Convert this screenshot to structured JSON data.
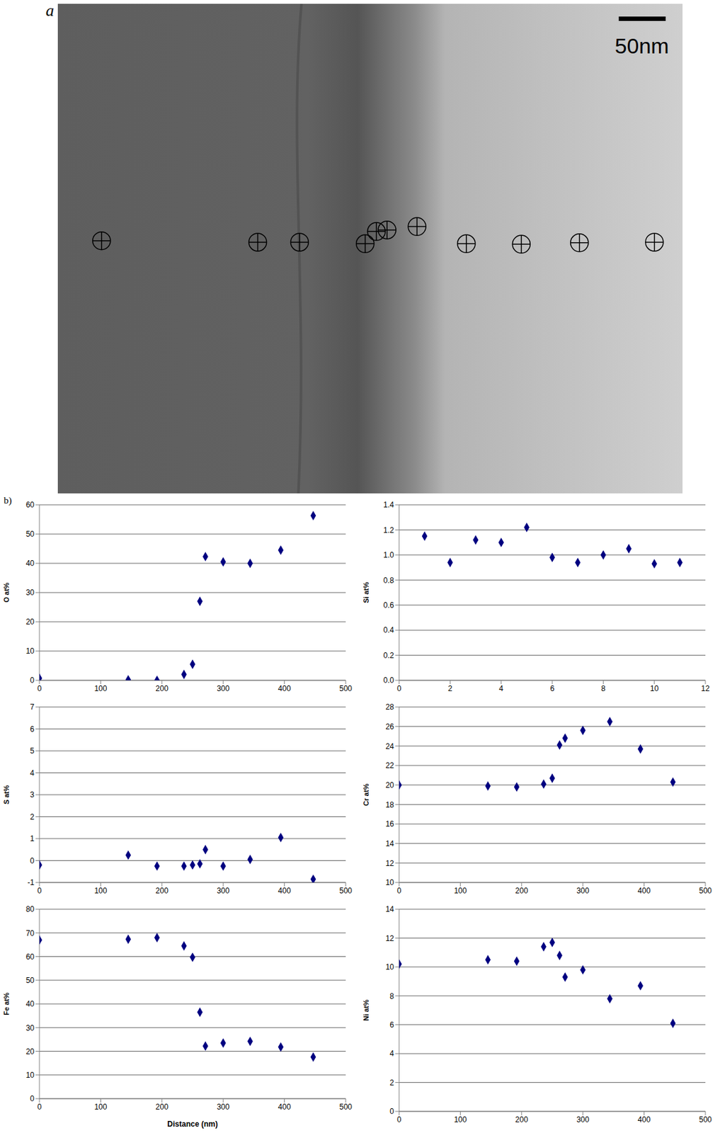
{
  "figure": {
    "panel_a_label": "a",
    "scale_bar_label": "50nm",
    "panel_b_label": "b)"
  },
  "chart_data": [
    {
      "type": "scatter",
      "y_label": "O at%",
      "color": "#000080",
      "marker": "diamond",
      "grid": true,
      "x": [
        0,
        145,
        192,
        236,
        250,
        262,
        271,
        300,
        344,
        394,
        447
      ],
      "values": [
        0.7,
        0.2,
        0,
        2,
        5.5,
        27,
        42.3,
        40.5,
        40,
        44.5,
        56.3
      ],
      "xlim": [
        0,
        500
      ],
      "xticks": [
        0,
        100,
        200,
        300,
        400,
        500
      ],
      "ylim": [
        0,
        60
      ],
      "yticks": [
        0,
        10,
        20,
        30,
        40,
        50,
        60
      ]
    },
    {
      "type": "scatter",
      "y_label": "Si at%",
      "color": "#000080",
      "marker": "diamond",
      "grid": true,
      "x": [
        1,
        2,
        3,
        4,
        5,
        6,
        7,
        8,
        9,
        10,
        11
      ],
      "values": [
        1.15,
        0.94,
        1.12,
        1.1,
        1.22,
        0.98,
        0.94,
        1.0,
        1.05,
        0.93,
        0.94
      ],
      "xlim": [
        0,
        12
      ],
      "xticks": [
        0,
        2,
        4,
        6,
        8,
        10,
        12
      ],
      "ylim": [
        0,
        1.4
      ],
      "yticks": [
        {
          "value": 0,
          "label": "0.0"
        },
        0.2,
        0.4,
        0.6,
        0.8,
        {
          "value": 1,
          "label": "1.0"
        },
        1.2,
        1.4
      ]
    },
    {
      "type": "scatter",
      "y_label": "S at%",
      "color": "#000080",
      "marker": "diamond",
      "grid": true,
      "x": [
        0,
        145,
        192,
        236,
        250,
        262,
        271,
        300,
        344,
        394,
        447
      ],
      "values": [
        -0.2,
        0.25,
        -0.25,
        -0.25,
        -0.2,
        -0.15,
        0.5,
        -0.25,
        0.05,
        1.05,
        -0.85
      ],
      "xlim": [
        0,
        500
      ],
      "xticks": [
        0,
        100,
        200,
        300,
        400,
        500
      ],
      "ylim": [
        -1,
        7
      ],
      "yticks": [
        -1,
        0,
        1,
        2,
        3,
        4,
        5,
        6,
        7
      ]
    },
    {
      "type": "scatter",
      "y_label": "Cr at%",
      "color": "#000080",
      "marker": "diamond",
      "grid": true,
      "x": [
        0,
        145,
        192,
        236,
        250,
        262,
        271,
        300,
        344,
        394,
        447
      ],
      "values": [
        20.0,
        19.9,
        19.8,
        20.1,
        20.7,
        24.1,
        24.8,
        25.6,
        26.5,
        23.7,
        20.3
      ],
      "xlim": [
        0,
        500
      ],
      "xticks": [
        0,
        100,
        200,
        300,
        400,
        500
      ],
      "ylim": [
        10,
        28
      ],
      "yticks": [
        10,
        12,
        14,
        16,
        18,
        20,
        22,
        24,
        26,
        28
      ]
    },
    {
      "type": "scatter",
      "y_label": "Fe at%",
      "x_label": "Distance (nm)",
      "color": "#000080",
      "marker": "diamond",
      "grid": true,
      "x": [
        0,
        145,
        192,
        236,
        250,
        262,
        271,
        300,
        344,
        394,
        447
      ],
      "values": [
        67,
        67.3,
        68,
        64.5,
        59.7,
        36.5,
        22.2,
        23.5,
        24.2,
        21.8,
        17.6
      ],
      "xlim": [
        0,
        500
      ],
      "xticks": [
        0,
        100,
        200,
        300,
        400,
        500
      ],
      "ylim": [
        0,
        80
      ],
      "yticks": [
        0,
        10,
        20,
        30,
        40,
        50,
        60,
        70,
        80
      ]
    },
    {
      "type": "scatter",
      "y_label": "Ni at%",
      "color": "#000080",
      "marker": "diamond",
      "grid": true,
      "x": [
        0,
        145,
        192,
        236,
        250,
        262,
        271,
        300,
        344,
        394,
        447
      ],
      "values": [
        10.2,
        10.5,
        10.4,
        11.4,
        11.7,
        10.8,
        9.3,
        9.8,
        7.8,
        8.7,
        6.1
      ],
      "xlim": [
        0,
        500
      ],
      "xticks": [
        0,
        100,
        200,
        300,
        400,
        500
      ],
      "ylim": [
        0,
        14
      ],
      "yticks": [
        0,
        2,
        4,
        6,
        8,
        10,
        12,
        14
      ]
    }
  ]
}
